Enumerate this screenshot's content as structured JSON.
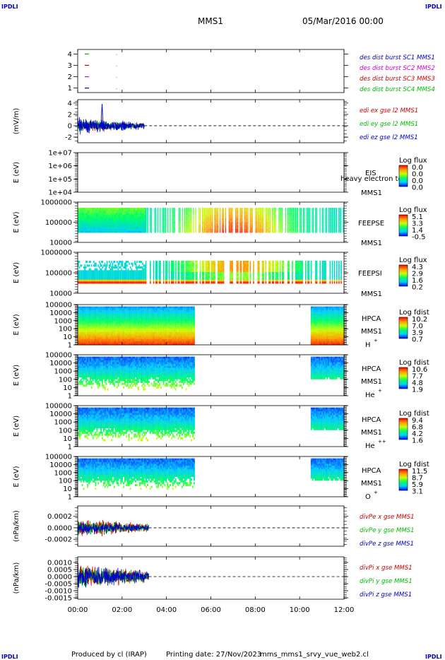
{
  "header": {
    "corner_label": "IPDLI",
    "spacecraft": "MMS1",
    "datetime": "05/Mar/2016 00:00"
  },
  "footer": {
    "produced_by": "Produced by cl (IRAP)",
    "printing_date": "Printing date: 27/Nov/2023",
    "filename": "mms_mms1_srvy_vue_web2.cl"
  },
  "colors": {
    "mms1": "#0000cc",
    "mms2": "#cc00cc",
    "mms3": "#cc0000",
    "mms4": "#00bb00"
  },
  "chart_data": [
    {
      "id": "burst",
      "type": "scatter",
      "ylabel": "",
      "yticks": [
        "1",
        "2",
        "3",
        "4"
      ],
      "ylim": [
        0.6,
        4.4
      ],
      "series": [
        {
          "name": "des dist burst SC1 MMS1",
          "color": "#0000cc",
          "y": 1,
          "x": [
            0.2
          ]
        },
        {
          "name": "des dist burst SC2 MMS2",
          "color": "#cc00cc",
          "y": 2,
          "x": [
            0.2
          ]
        },
        {
          "name": "des dist burst SC3 MMS3",
          "color": "#cc0000",
          "y": 3,
          "x": [
            0.2
          ]
        },
        {
          "name": "des dist burst SC4 MMS4",
          "color": "#00bb00",
          "y": 4,
          "x": [
            0.2
          ]
        }
      ]
    },
    {
      "id": "edi",
      "type": "line",
      "ylabel": "(mV/m)",
      "yticks": [
        "-2",
        "0",
        "2",
        "4"
      ],
      "ylim": [
        -3,
        4.6
      ],
      "data_end_hour": 3.0,
      "series": [
        {
          "name": "edi ex gse l2 MMS1",
          "color": "#cc0000"
        },
        {
          "name": "edi ey gse l2 MMS1",
          "color": "#00bb00"
        },
        {
          "name": "edi ez gse l2 MMS1",
          "color": "#0000cc"
        }
      ]
    },
    {
      "id": "eis",
      "type": "heatmap",
      "ylabel": "E (eV)",
      "yticks": [
        "1e+04",
        "1e+05",
        "1e+06",
        "1e+07"
      ],
      "instrument": "EIS",
      "extra": "heavy electron to",
      "spacecraft": "MMS1",
      "colorbar": {
        "title": "Log flux",
        "values": [
          "0.0",
          "0.0",
          "0.0",
          "0.0"
        ]
      }
    },
    {
      "id": "feepse",
      "type": "heatmap",
      "ylabel": "E (eV)",
      "yticks": [
        "10000",
        "100000",
        "1000000"
      ],
      "instrument": "FEEPSE",
      "spacecraft": "MMS1",
      "colorbar": {
        "title": "Log flux",
        "values": [
          "5.1",
          "3.3",
          "1.4",
          "-0.5"
        ]
      }
    },
    {
      "id": "feepsi",
      "type": "heatmap",
      "ylabel": "E (eV)",
      "yticks": [
        "10000",
        "100000",
        "1000000"
      ],
      "instrument": "FEEPSI",
      "spacecraft": "MMS1",
      "colorbar": {
        "title": "Log flux",
        "values": [
          "4.3",
          "2.9",
          "1.6",
          "0.2"
        ]
      }
    },
    {
      "id": "hpca_h",
      "type": "heatmap",
      "ylabel": "E (eV)",
      "yticks": [
        "1",
        "10",
        "100",
        "1000",
        "10000",
        "100000"
      ],
      "instrument": "HPCA",
      "spacecraft": "MMS1",
      "species": "H",
      "charge": "+",
      "colorbar": {
        "title": "Log fdist",
        "values": [
          "10.2",
          "7.0",
          "3.9",
          "0.7"
        ]
      }
    },
    {
      "id": "hpca_he",
      "type": "heatmap",
      "ylabel": "E (eV)",
      "yticks": [
        "1",
        "10",
        "100",
        "1000",
        "10000",
        "100000"
      ],
      "instrument": "HPCA",
      "spacecraft": "MMS1",
      "species": "He",
      "charge": "+",
      "colorbar": {
        "title": "Log fdist",
        "values": [
          "10.6",
          "7.7",
          "4.8",
          "1.9"
        ]
      }
    },
    {
      "id": "hpca_hepp",
      "type": "heatmap",
      "ylabel": "E (eV)",
      "yticks": [
        "1",
        "10",
        "100",
        "1000",
        "10000",
        "100000"
      ],
      "instrument": "HPCA",
      "spacecraft": "MMS1",
      "species": "He",
      "charge": "++",
      "colorbar": {
        "title": "Log fdist",
        "values": [
          "9.4",
          "6.8",
          "4.2",
          "1.6"
        ]
      }
    },
    {
      "id": "hpca_o",
      "type": "heatmap",
      "ylabel": "E (eV)",
      "yticks": [
        "1",
        "10",
        "100",
        "1000",
        "10000",
        "100000"
      ],
      "instrument": "HPCA",
      "spacecraft": "MMS1",
      "species": "O",
      "charge": "+",
      "colorbar": {
        "title": "Log fdist",
        "values": [
          "11.5",
          "8.7",
          "5.9",
          "3.1"
        ]
      }
    },
    {
      "id": "divpe",
      "type": "line",
      "ylabel": "(nPa/km)",
      "yticks": [
        "-0.0002",
        "0.0000",
        "0.0002"
      ],
      "ylim": [
        -0.00032,
        0.00038
      ],
      "data_end_hour": 3.2,
      "series": [
        {
          "name": "divPe x gse MMS1",
          "color": "#cc0000"
        },
        {
          "name": "divPe y gse MMS1",
          "color": "#00bb00"
        },
        {
          "name": "divPe z gse MMS1",
          "color": "#0000cc"
        }
      ]
    },
    {
      "id": "divpi",
      "type": "line",
      "ylabel": "(nPa/km)",
      "yticks": [
        "-0.0015",
        "-0.0010",
        "-0.0005",
        "0.0000",
        "0.0005",
        "0.0010"
      ],
      "ylim": [
        -0.0016,
        0.0014
      ],
      "data_end_hour": 3.2,
      "series": [
        {
          "name": "divPi x gse MMS1",
          "color": "#cc0000"
        },
        {
          "name": "divPi y gse MMS1",
          "color": "#00bb00"
        },
        {
          "name": "divPi z gse MMS1",
          "color": "#0000cc"
        }
      ]
    }
  ],
  "xaxis": {
    "ticks": [
      "00:00",
      "02:00",
      "04:00",
      "06:00",
      "08:00",
      "10:00",
      "12:00"
    ],
    "xlim_hours": [
      0,
      12
    ]
  }
}
